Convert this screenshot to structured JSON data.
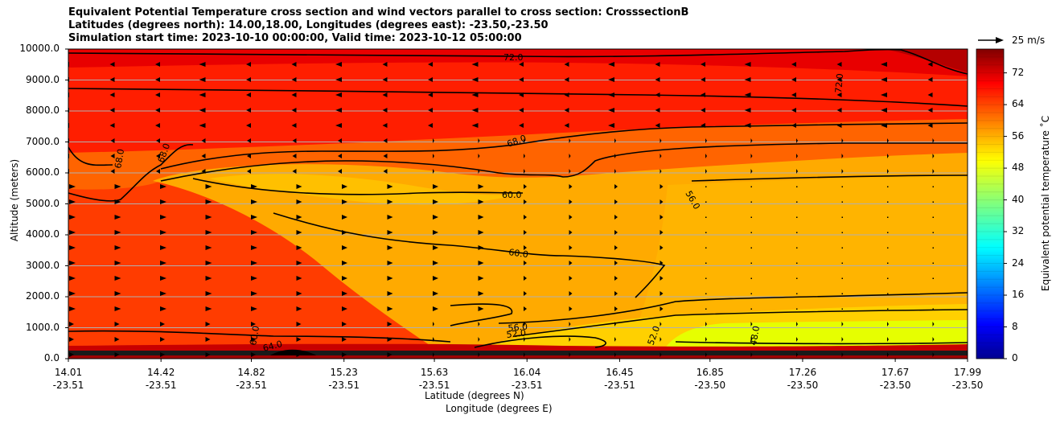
{
  "title_lines": [
    "Equivalent Potential Temperature cross section and wind vectors parallel to cross section: CrosssectionB",
    "Latitudes (degrees north): 14.00,18.00, Longitudes (degrees east): -23.50,-23.50",
    "Simulation start time: 2023-10-10 00:00:00, Valid time: 2023-10-12 05:00:00"
  ],
  "chart_data": {
    "type": "heatmap",
    "ylabel": "Altitude (meters)",
    "xlabel": "Latitude (degrees N)",
    "xlabel2": "Longitude (degrees E)",
    "ylim": [
      0,
      10000
    ],
    "y_ticks": [
      "0.0",
      "1000.0",
      "2000.0",
      "3000.0",
      "4000.0",
      "5000.0",
      "6000.0",
      "7000.0",
      "8000.0",
      "9000.0",
      "10000.0"
    ],
    "x_ticks_lat": [
      "14.01",
      "14.42",
      "14.82",
      "15.23",
      "15.63",
      "16.04",
      "16.45",
      "16.85",
      "17.26",
      "17.67",
      "17.99"
    ],
    "x_ticks_lon": [
      "-23.51",
      "-23.51",
      "-23.51",
      "-23.51",
      "-23.51",
      "-23.51",
      "-23.51",
      "-23.50",
      "-23.50",
      "-23.50",
      "-23.50"
    ],
    "colorbar": {
      "label": "Equivalent potential temperature $^\\circ$C",
      "label_display": "Equivalent potential temperature ˚C",
      "ticks": [
        "0",
        "8",
        "16",
        "24",
        "32",
        "40",
        "48",
        "56",
        "64",
        "72"
      ],
      "range": [
        0,
        78
      ],
      "colormap": "jet"
    },
    "contour_labels": [
      "72.0",
      "68.0",
      "68.0",
      "68.0",
      "60.0",
      "60.0",
      "56.0",
      "56.0",
      "52.0",
      "52.0",
      "48.0",
      "64.0",
      "60.0",
      "72.0"
    ],
    "reference_vector": "25 m/s",
    "grid": "horizontal"
  }
}
